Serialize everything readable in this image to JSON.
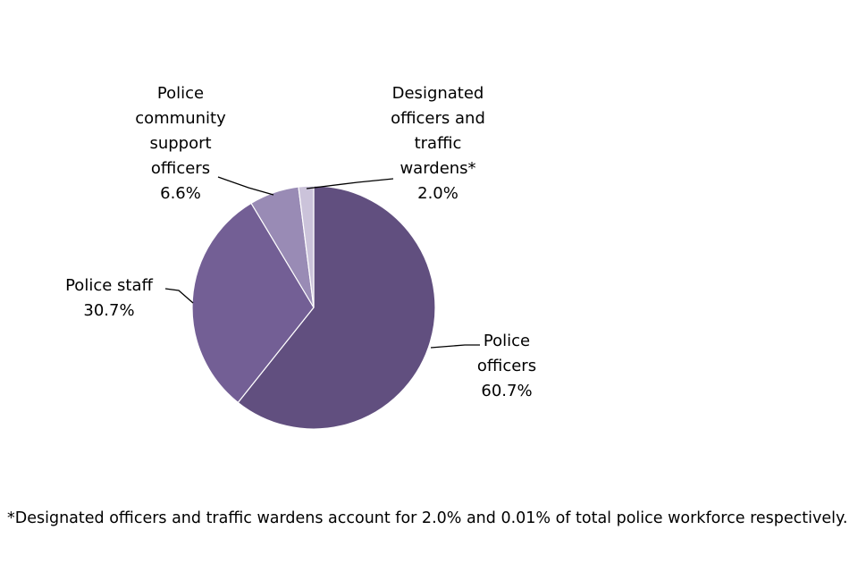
{
  "chart_data": {
    "type": "pie",
    "title": "",
    "slices": [
      {
        "label_lines": [
          "Police",
          "officers",
          "60.7%"
        ],
        "category": "Police officers",
        "value": 60.7,
        "color": "#614f7f"
      },
      {
        "label_lines": [
          "Police staff",
          "30.7%"
        ],
        "category": "Police staff",
        "value": 30.7,
        "color": "#735f95"
      },
      {
        "label_lines": [
          "Police",
          "community",
          "support",
          "officers",
          "6.6%"
        ],
        "category": "Police community support officers",
        "value": 6.6,
        "color": "#998bb5"
      },
      {
        "label_lines": [
          "Designated",
          "officers and",
          "traffic",
          "wardens*",
          "2.0%"
        ],
        "category": "Designated officers and traffic wardens*",
        "value": 2.0,
        "color": "#cbc3da"
      }
    ],
    "legend": "none",
    "start": "12 o'clock",
    "direction": "clockwise"
  },
  "footnote": "*Designated officers and traffic wardens account for 2.0% and 0.01% of total police workforce respectively."
}
